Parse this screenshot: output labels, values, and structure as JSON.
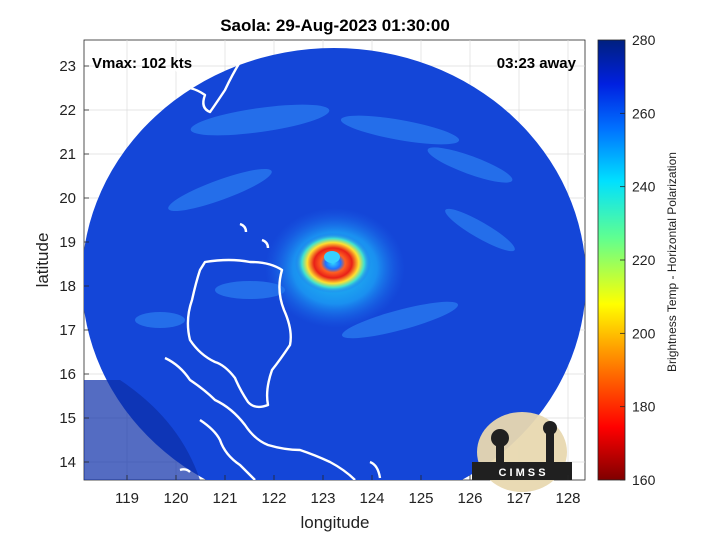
{
  "title": "Saola: 29-Aug-2023 01:30:00",
  "vmax_label": "Vmax: 102 kts",
  "time_away": "03:23 away",
  "xlabel": "longitude",
  "ylabel": "latitude",
  "x_ticks": [
    "119",
    "120",
    "121",
    "122",
    "123",
    "124",
    "125",
    "126",
    "127",
    "128"
  ],
  "y_ticks": [
    "14",
    "15",
    "16",
    "17",
    "18",
    "19",
    "20",
    "21",
    "22",
    "23"
  ],
  "colorbar": {
    "label": "Brightness Temp - Horizontal Polarization",
    "ticks": [
      "160",
      "180",
      "200",
      "220",
      "240",
      "260",
      "280"
    ]
  },
  "logo_text": "C I M S S",
  "colors": {
    "swath_blue": "#1446d8",
    "eye_red": "#e8201a",
    "coast": "#ffffff"
  }
}
